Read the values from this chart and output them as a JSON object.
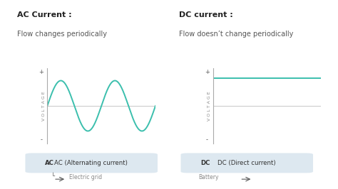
{
  "bg_color": "#ffffff",
  "ac_title_bold": "AC Current :",
  "ac_title_sub": "Flow changes periodically",
  "dc_title_bold": "DC current :",
  "dc_title_sub": "Flow doesn’t change periodically",
  "wave_color": "#3bbfad",
  "axis_color": "#cccccc",
  "ylabel_text": "V O L T A G E",
  "plus_label": "+",
  "minus_label": "-",
  "ac_badge_bold": "AC",
  "ac_badge_rest": " (Alternating current)",
  "ac_sub_label": "Electric grid",
  "dc_badge_bold": "DC",
  "dc_badge_rest": " (Direct current)",
  "dc_sub_label": "Battery",
  "badge_bg": "#dde8f0",
  "badge_text_color": "#333333",
  "sub_label_color": "#888888",
  "title_bold_color": "#222222",
  "title_sub_color": "#555555"
}
